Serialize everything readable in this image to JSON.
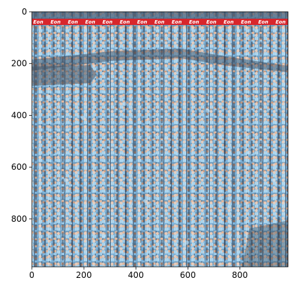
{
  "figure": {
    "image_description": "Dense stadium crowd of supporters in sky-blue shirts, with a red advertising banner across the top edge",
    "banner_text": "Eon",
    "axes": {
      "x_ticks": [
        0,
        200,
        400,
        600,
        800
      ],
      "y_ticks": [
        0,
        200,
        400,
        600,
        800
      ],
      "xlim": [
        0,
        985
      ],
      "ylim": [
        985,
        0
      ]
    },
    "colors": {
      "banner_red": "#d8262c",
      "banner_text": "#ffffff",
      "shirt_blue": "#8fc3e5",
      "shadow": "#2a2e3c"
    }
  }
}
